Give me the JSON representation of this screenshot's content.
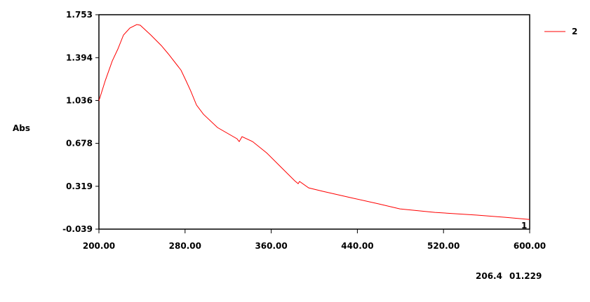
{
  "chart_data": {
    "type": "line",
    "title": "",
    "xlabel": "",
    "ylabel": "Abs",
    "xlim": [
      200,
      600
    ],
    "ylim": [
      -0.039,
      1.753
    ],
    "x_ticks": [
      "200.00",
      "280.00",
      "360.00",
      "440.00",
      "520.00",
      "600.00"
    ],
    "x_tick_values": [
      200,
      280,
      360,
      440,
      520,
      600
    ],
    "y_ticks": [
      "1.753",
      "1.394",
      "1.036",
      "0.678",
      "0.319",
      "-0.039"
    ],
    "y_tick_values": [
      1.753,
      1.394,
      1.036,
      0.678,
      0.319,
      -0.039
    ],
    "grid": false,
    "legend_position": "top-right",
    "series": [
      {
        "name": "2",
        "color": "#ff0000",
        "x": [
          200,
          205.9,
          212.4,
          217.6,
          222.8,
          228.7,
          235.2,
          238.4,
          248.2,
          258,
          264.5,
          276.2,
          280.8,
          285.3,
          290.6,
          297.1,
          310.1,
          328.3,
          329.6,
          330.3,
          332.9,
          342.7,
          355.7,
          368.7,
          381.8,
          385,
          386.3,
          394.8,
          407.8,
          433.9,
          459.9,
          479.5,
          512,
          551.1,
          577.2,
          600
        ],
        "y": [
          1.033,
          1.203,
          1.366,
          1.466,
          1.583,
          1.642,
          1.671,
          1.665,
          1.583,
          1.495,
          1.425,
          1.29,
          1.203,
          1.115,
          0.998,
          0.921,
          0.81,
          0.716,
          0.7,
          0.693,
          0.734,
          0.693,
          0.599,
          0.482,
          0.365,
          0.341,
          0.359,
          0.306,
          0.277,
          0.224,
          0.172,
          0.13,
          0.101,
          0.078,
          0.06,
          0.042
        ]
      }
    ],
    "curve_label": "1"
  },
  "cursor_readout": {
    "x": "206.4",
    "y": "01.229"
  }
}
